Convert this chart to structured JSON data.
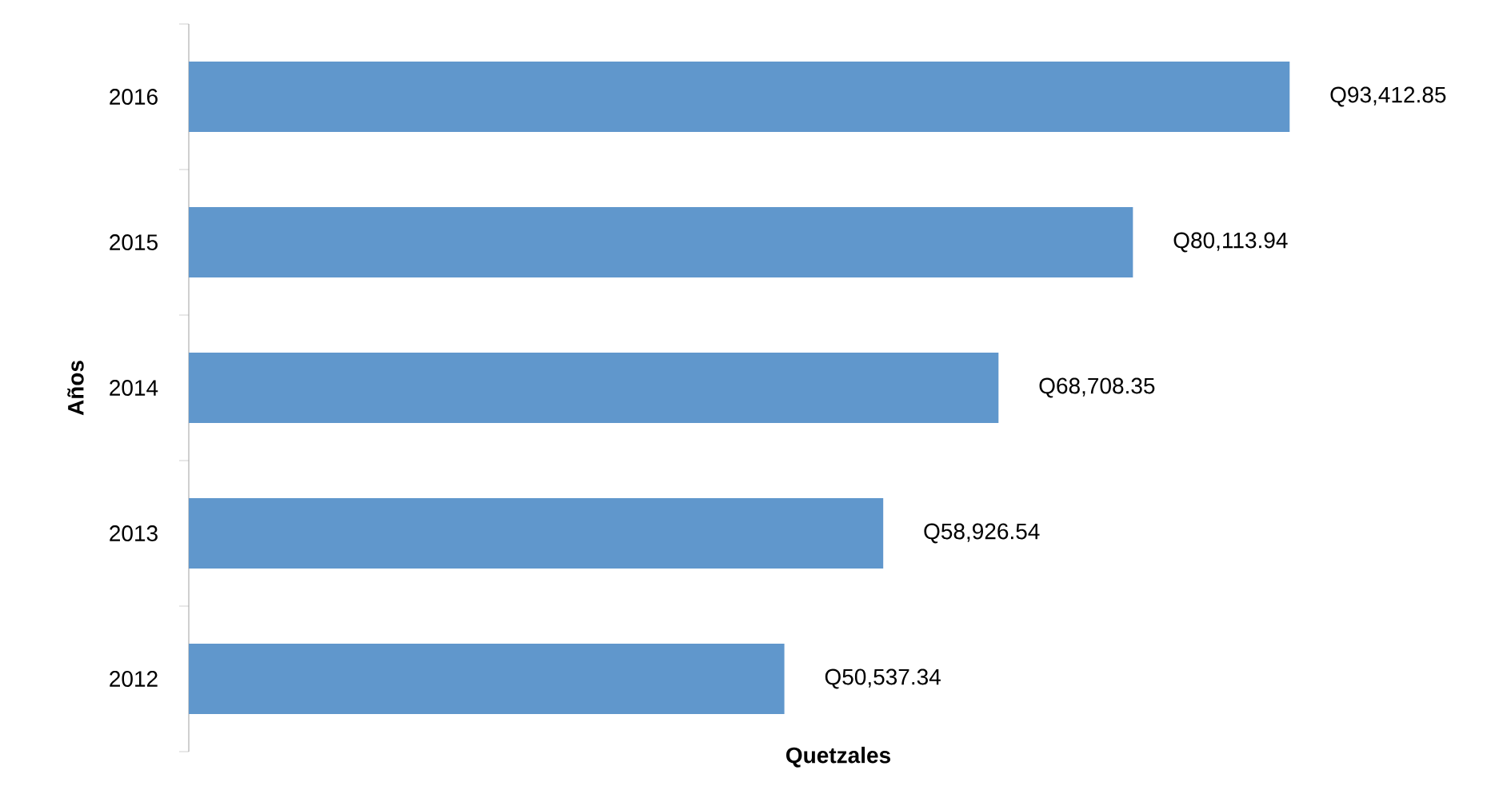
{
  "chart_data": {
    "type": "bar",
    "orientation": "horizontal",
    "xlabel": "Quetzales",
    "ylabel": "Años",
    "categories": [
      "2016",
      "2015",
      "2014",
      "2013",
      "2012"
    ],
    "values": [
      93412.85,
      80113.94,
      68708.35,
      58926.54,
      50537.34
    ],
    "value_labels": [
      "Q93,412.85",
      "Q80,113.94",
      "Q68,708.35",
      "Q58,926.54",
      "Q50,537.34"
    ],
    "color": "#6097cc"
  }
}
